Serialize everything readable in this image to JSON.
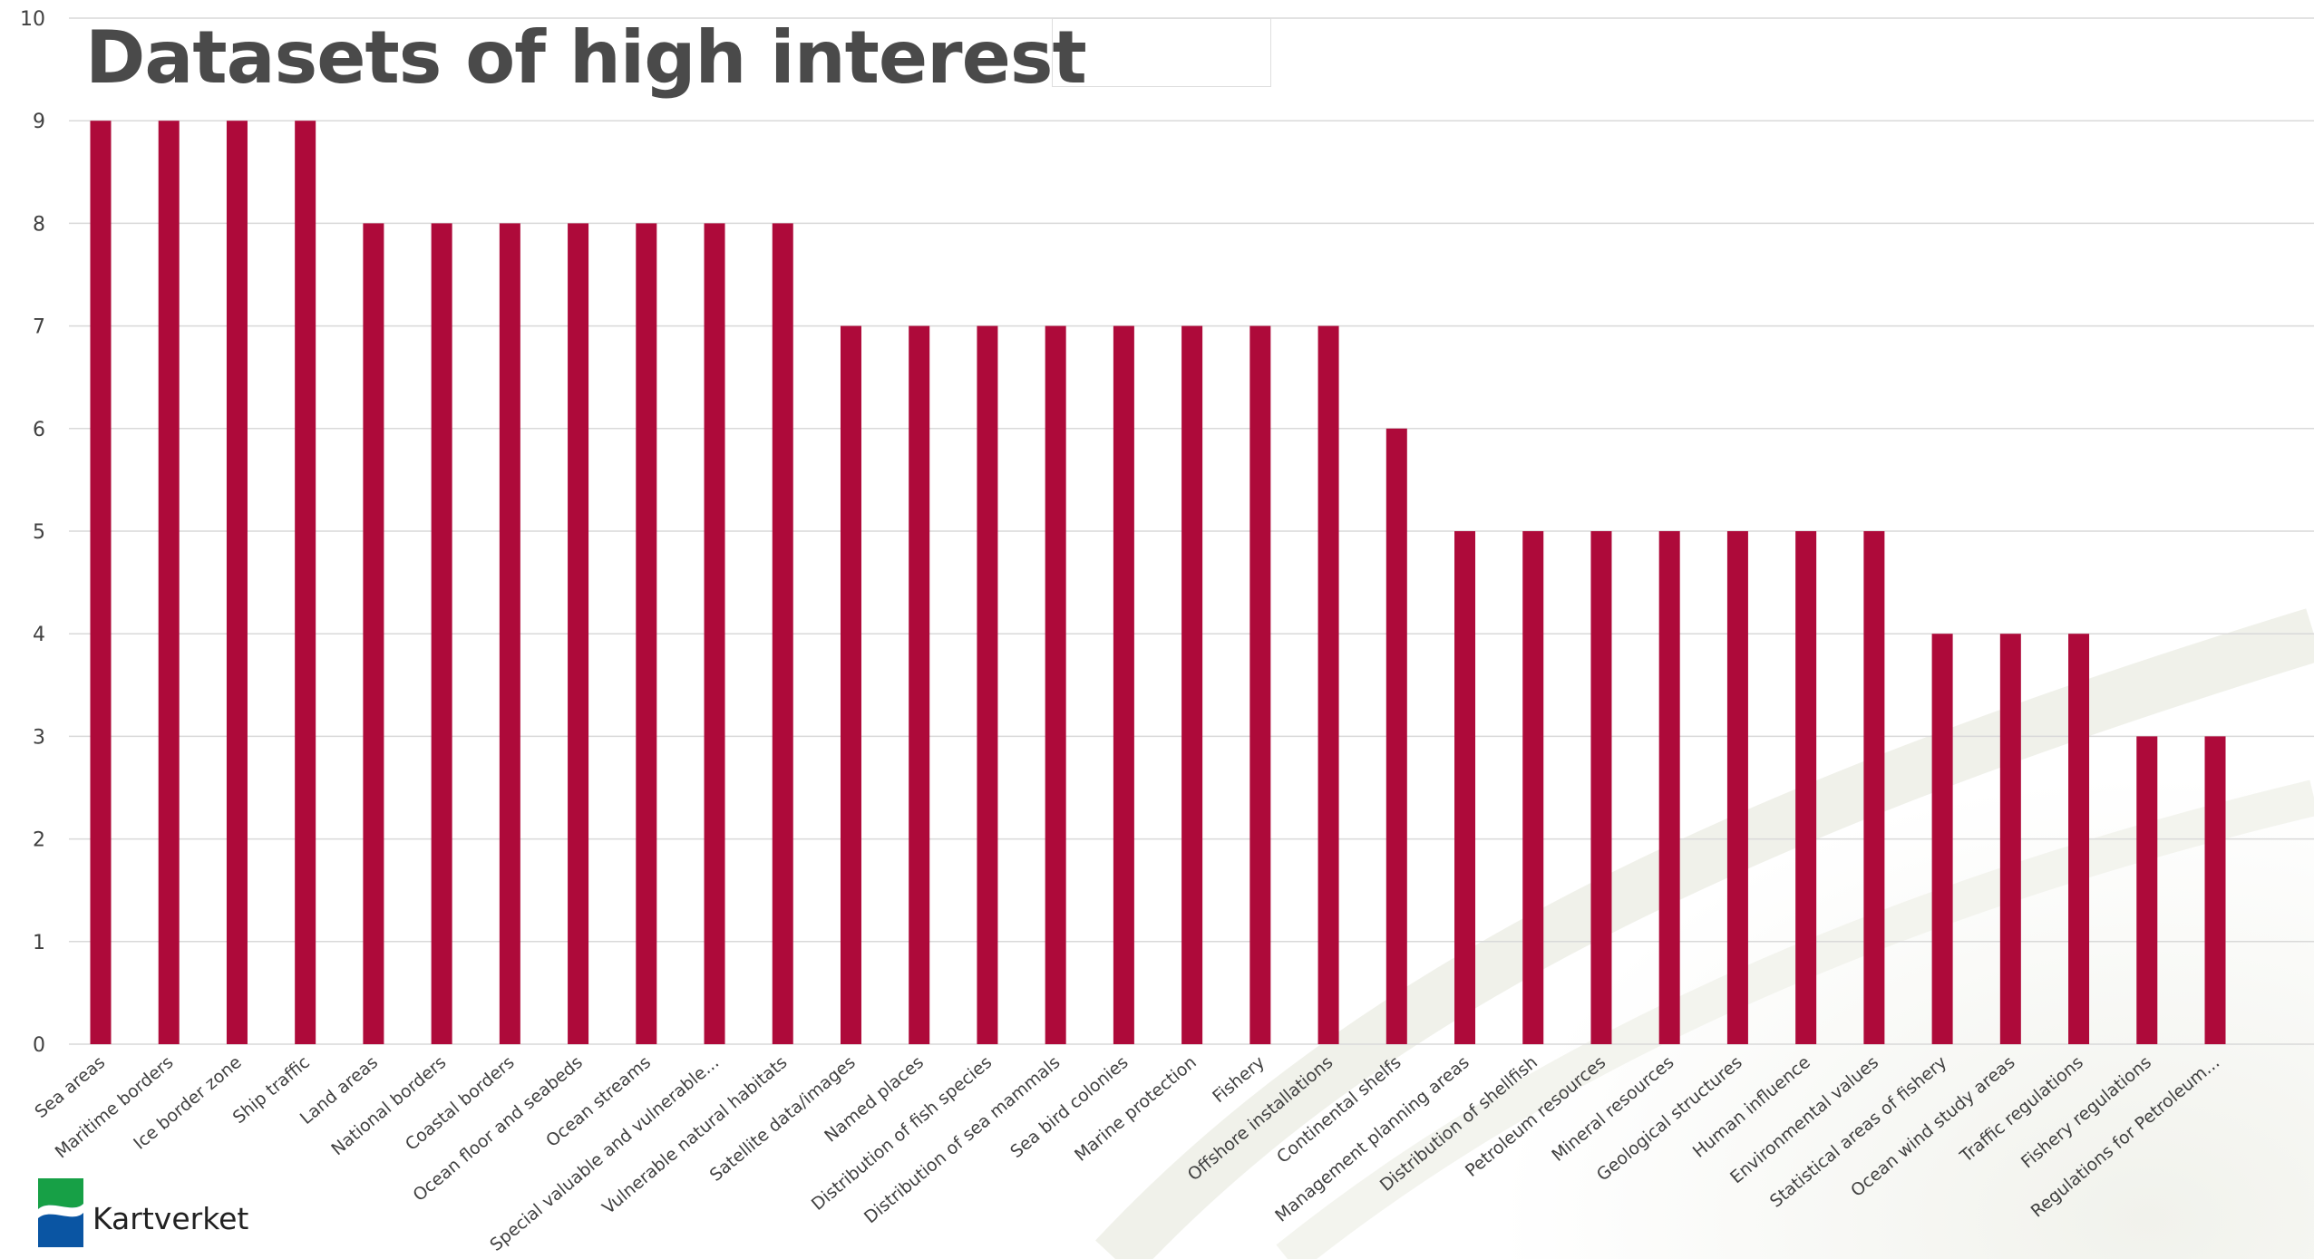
{
  "logo": {
    "text": "Kartverket"
  },
  "colors": {
    "bar": "#ae0a3a",
    "grid": "#d9d9d9",
    "axis_text": "#404040",
    "title": "#4a4a4a"
  },
  "chart_data": {
    "type": "bar",
    "title": "Datasets of high interest",
    "xlabel": "",
    "ylabel": "",
    "ylim": [
      0,
      10
    ],
    "yticks": [
      "0",
      "1",
      "2",
      "3",
      "4",
      "5",
      "6",
      "7",
      "8",
      "9",
      "10"
    ],
    "grid": true,
    "legend": "none",
    "categories": [
      "Sea areas",
      "Maritime borders",
      "Ice border zone",
      "Ship traffic",
      "Land areas",
      "National borders",
      "Coastal borders",
      "Ocean floor and seabeds",
      "Ocean streams",
      "Special valuable and vulnerable...",
      "Vulnerable natural habitats",
      "Satellite data/images",
      "Named places",
      "Distribution of fish species",
      "Distribution of sea mammals",
      "Sea bird colonies",
      "Marine protection",
      "Fishery",
      "Offshore installations",
      "Continental shelfs",
      "Management planning areas",
      "Distribution of shellfish",
      "Petroleum resources",
      "Mineral resources",
      "Geological structures",
      "Human influence",
      "Environmental values",
      "Statistical areas of fishery",
      "Ocean wind study areas",
      "Traffic regulations",
      "Fishery regulations",
      "Regulations for Petroleum..."
    ],
    "values": [
      9,
      9,
      9,
      9,
      8,
      8,
      8,
      8,
      8,
      8,
      8,
      7,
      7,
      7,
      7,
      7,
      7,
      7,
      7,
      6,
      5,
      5,
      5,
      5,
      5,
      5,
      5,
      4,
      4,
      4,
      3,
      3
    ]
  }
}
